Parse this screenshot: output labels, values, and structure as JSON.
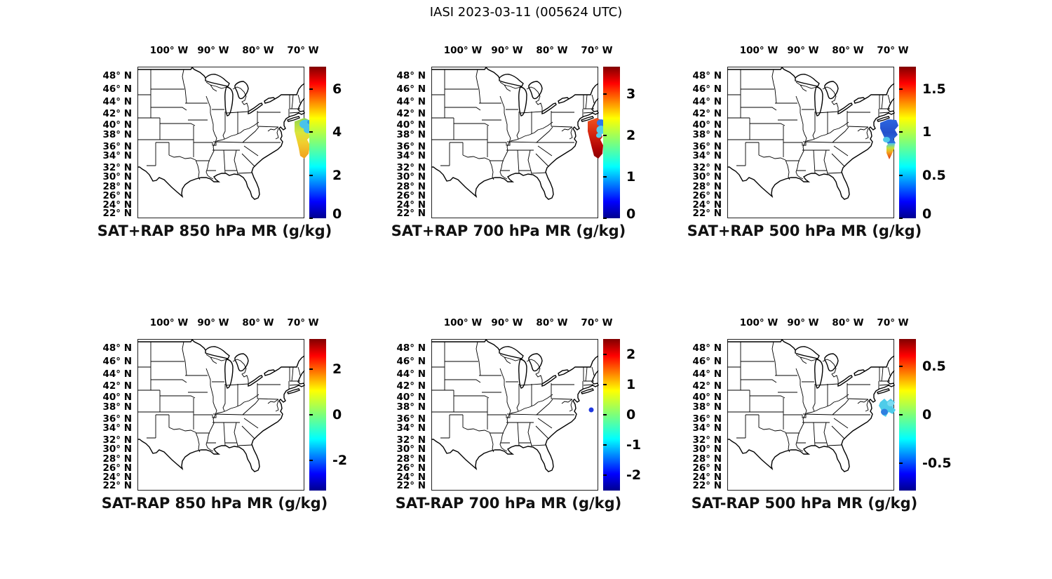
{
  "figure_title": "IASI 2023-03-11 (005624 UTC)",
  "instrument": "IASI",
  "date": "2023-03-11",
  "time_utc": "005624",
  "axes": {
    "lon_ticks": [
      "100° W",
      "90° W",
      "80° W",
      "70° W"
    ],
    "lat_ticks": [
      "48° N",
      "46° N",
      "44° N",
      "42° N",
      "40° N",
      "38° N",
      "36° N",
      "34° N",
      "32° N",
      "30° N",
      "28° N",
      "26° N",
      "24° N",
      "22° N"
    ],
    "lon_range_deg_west": [
      107,
      70
    ],
    "lat_range_deg_north": [
      21,
      49.5
    ],
    "projection": "mercator-like, grid off"
  },
  "colormap": "jet",
  "chart_data": [
    {
      "type": "map-scatter",
      "panel": "top-left",
      "title": "SAT+RAP 850 hPa MR (g/kg)",
      "units": "g/kg",
      "colorbar": {
        "tick_labels": [
          "6",
          "4",
          "2",
          "0"
        ],
        "tick_values": [
          6,
          4,
          2,
          0
        ],
        "range": [
          0,
          7.05
        ],
        "colormap": "jet",
        "position": "right"
      },
      "swath": {
        "present": true,
        "location": "Atlantic Ocean off the US East Coast, approx 73-69°W, 33.5-41°N, diagonal satellite strip crossing the map's right edge",
        "values_summary": "mostly yellow-green to orange, approx 3.5-5 g/kg; cyan/light-blue patch approx 2-2.5 g/kg at the northern end"
      }
    },
    {
      "type": "map-scatter",
      "panel": "top-middle",
      "title": "SAT+RAP 700 hPa MR (g/kg)",
      "units": "g/kg",
      "colorbar": {
        "tick_labels": [
          "3",
          "2",
          "1",
          "0"
        ],
        "tick_values": [
          3,
          2,
          1,
          0
        ],
        "range": [
          0,
          3.66
        ],
        "colormap": "jet",
        "position": "right"
      },
      "swath": {
        "present": true,
        "location": "same Atlantic strip off the US East Coast, approx 73-69°W, 33.5-41°N",
        "values_summary": "mostly red to dark red, approx 2.5-3.6 g/kg; royal-blue patch approx 0.9 and cyan patch approx 1.3 g/kg at the northern end"
      }
    },
    {
      "type": "map-scatter",
      "panel": "top-right",
      "title": "SAT+RAP 500 hPa MR (g/kg)",
      "units": "g/kg",
      "colorbar": {
        "tick_labels": [
          "1.5",
          "1",
          "0.5",
          "0"
        ],
        "tick_values": [
          1.5,
          1,
          0.5,
          0
        ],
        "range": [
          0,
          1.76
        ],
        "colormap": "jet",
        "position": "right"
      },
      "swath": {
        "present": true,
        "location": "same Atlantic strip off the US East Coast, approx 73-70°W, 34-41°N",
        "values_summary": "mostly royal blue approx 0.2-0.4 g/kg with cyan patches approx 0.5; southern tip transitions cyan-yellow-orange-red up to approx 1.6 g/kg"
      }
    },
    {
      "type": "map-scatter",
      "panel": "bottom-left",
      "title": "SAT-RAP 850 hPa MR (g/kg)",
      "units": "g/kg",
      "colorbar": {
        "tick_labels": [
          "2",
          "0",
          "-2"
        ],
        "tick_values": [
          2,
          0,
          -2
        ],
        "range": [
          -3.3,
          3.3
        ],
        "colormap": "jet",
        "position": "right"
      },
      "swath": {
        "present": false,
        "location": "",
        "values_summary": "no difference data points plotted"
      }
    },
    {
      "type": "map-scatter",
      "panel": "bottom-middle",
      "title": "SAT-RAP 700 hPa MR (g/kg)",
      "units": "g/kg",
      "colorbar": {
        "tick_labels": [
          "2",
          "1",
          "0",
          "-1",
          "-2"
        ],
        "tick_values": [
          2,
          1,
          0,
          -1,
          -2
        ],
        "range": [
          -2.5,
          2.5
        ],
        "colormap": "jet",
        "position": "right"
      },
      "swath": {
        "present": true,
        "location": "single small dot offshore near approx 71.5°W, 37.5°N",
        "values_summary": "one blue dot, approx -1.8 g/kg"
      }
    },
    {
      "type": "map-scatter",
      "panel": "bottom-right",
      "title": "SAT-RAP 500 hPa MR (g/kg)",
      "units": "g/kg",
      "colorbar": {
        "tick_labels": [
          "0.5",
          "0",
          "-0.5"
        ],
        "tick_values": [
          0.5,
          0,
          -0.5
        ],
        "range": [
          -0.78,
          0.78
        ],
        "colormap": "jet",
        "position": "right"
      },
      "swath": {
        "present": true,
        "location": "small blob offshore near approx 72.5-70°W, 36.5-38.5°N, crossing the map's right edge",
        "values_summary": "cyan, approx -0.15 to -0.3 g/kg, with a darker blue patch approx -0.45 at its lower-left edge"
      }
    }
  ],
  "colors": {
    "background": "#ffffff",
    "map_outline": "#000000",
    "jet_low": "#00008f",
    "jet_high": "#800000"
  }
}
